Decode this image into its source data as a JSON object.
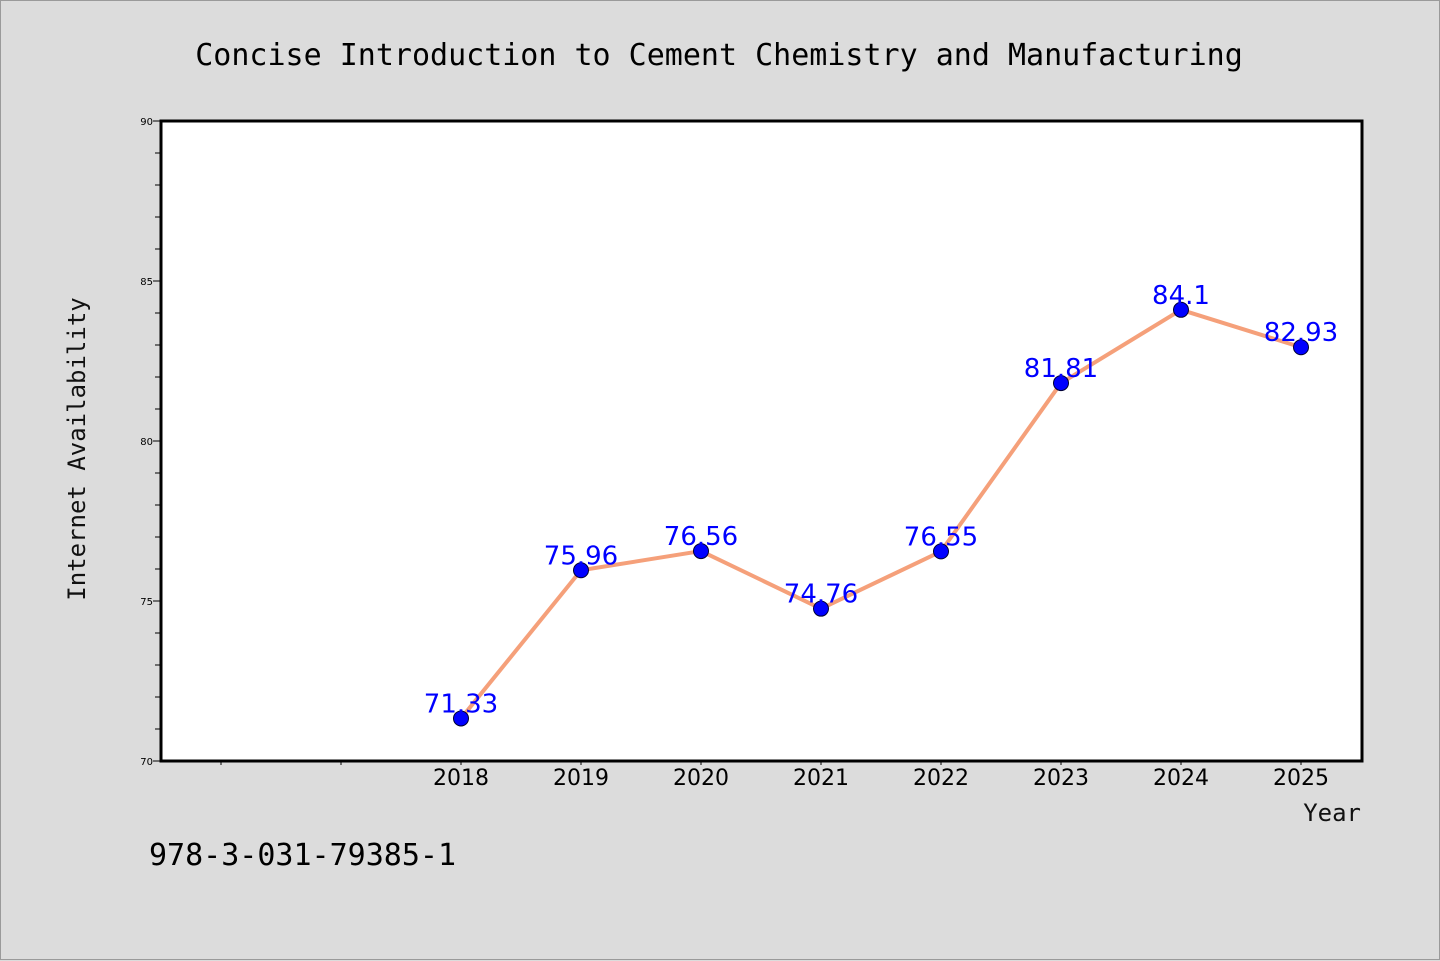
{
  "chart_data": {
    "type": "line",
    "title": "Concise Introduction to Cement Chemistry and Manufacturing",
    "xlabel": "Year",
    "ylabel": "Internet Availability",
    "categories": [
      "2018",
      "2019",
      "2020",
      "2021",
      "2022",
      "2023",
      "2024",
      "2025"
    ],
    "series": [
      {
        "values": [
          71.33,
          75.96,
          76.56,
          74.76,
          76.55,
          81.81,
          84.1,
          82.93
        ]
      }
    ],
    "data_labels": [
      "71.33",
      "75.96",
      "76.56",
      "74.76",
      "76.55",
      "81.81",
      "84.1",
      "82.93"
    ],
    "ylim": [
      70,
      90
    ],
    "yticks": [
      70,
      75,
      80,
      85,
      90
    ],
    "grid": false,
    "line_color": "#f5a07a",
    "marker_color": "#0000ff",
    "label_color": "#0000ff",
    "background_color": "#dcdcdc",
    "plot_background_color": "#ffffff"
  },
  "footnote": "978-3-031-79385-1"
}
